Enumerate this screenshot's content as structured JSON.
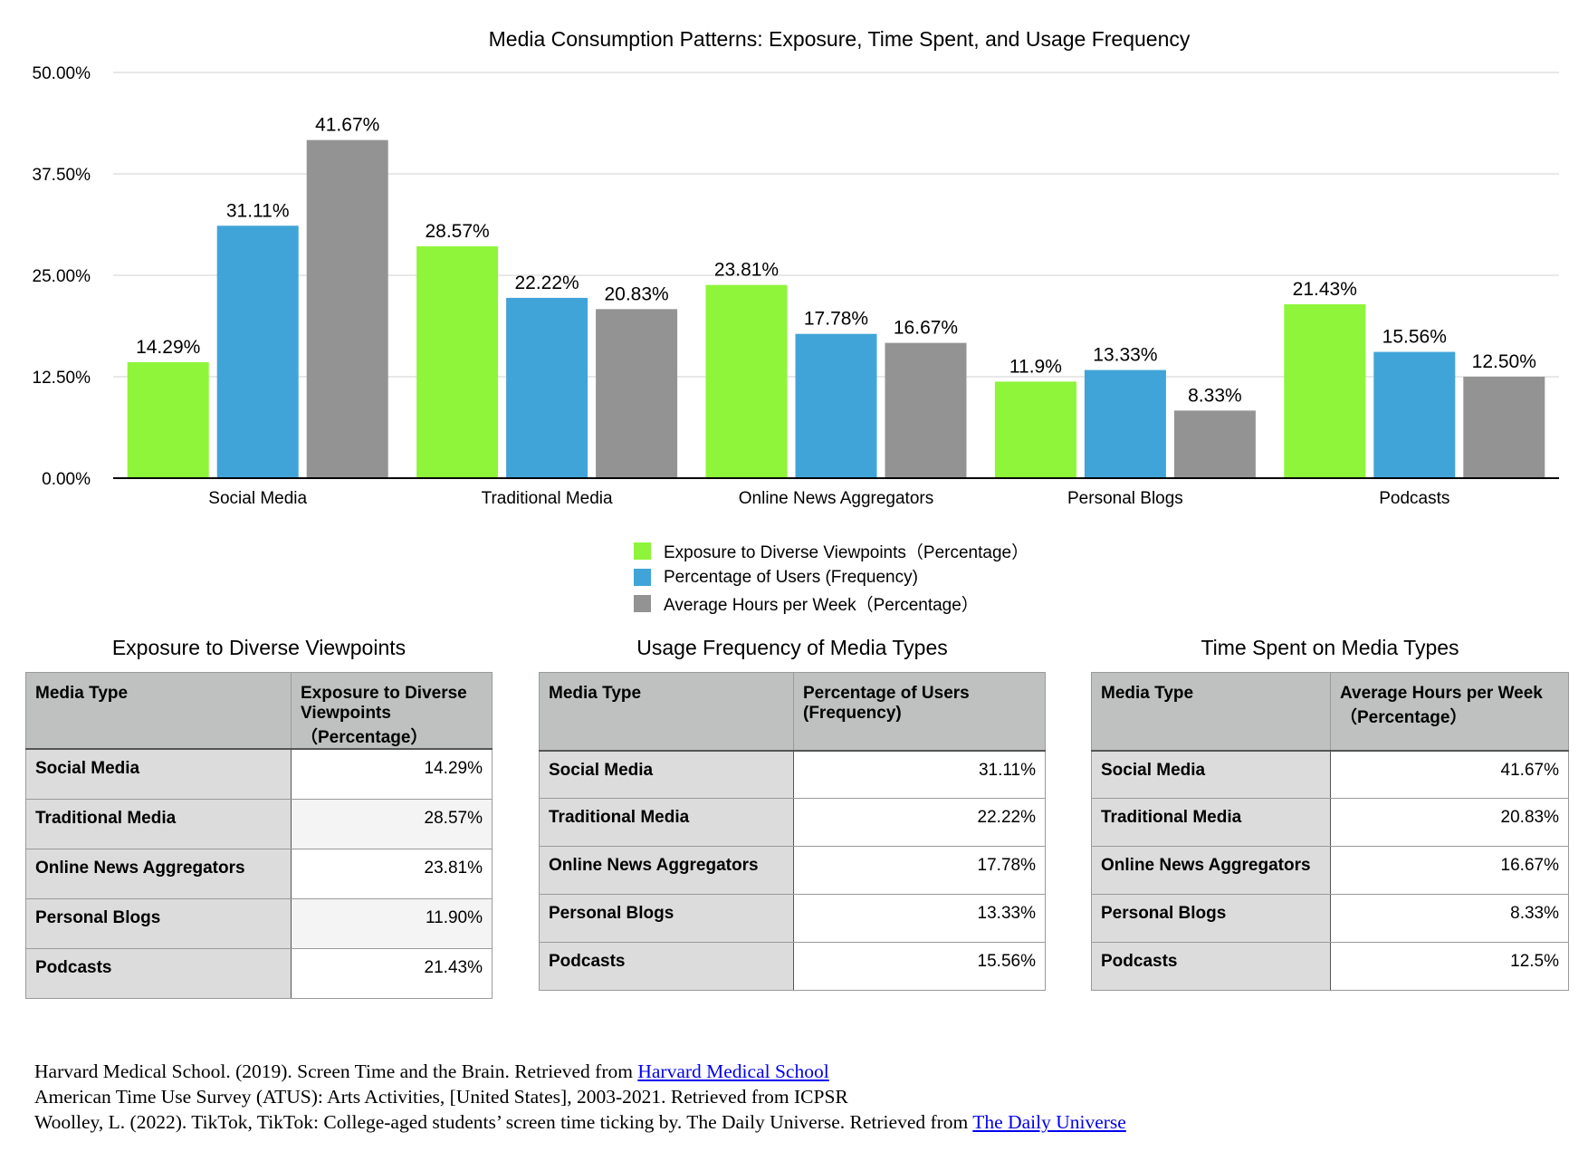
{
  "chart_data": {
    "type": "bar",
    "title": "Media Consumption Patterns: Exposure, Time Spent, and Usage Frequency",
    "categories": [
      "Social Media",
      "Traditional Media",
      "Online News Aggregators",
      "Personal Blogs",
      "Podcasts"
    ],
    "ylim": [
      0,
      50
    ],
    "yticks": [
      "0.00%",
      "12.50%",
      "25.00%",
      "37.50%",
      "50.00%"
    ],
    "ytick_values": [
      0,
      12.5,
      25,
      37.5,
      50
    ],
    "grid": true,
    "legend_position": "bottom-center",
    "series": [
      {
        "name": "Exposure to Diverse Viewpoints（Percentage）",
        "color": "#8ef53a",
        "values": [
          14.29,
          28.57,
          23.81,
          11.9,
          21.43
        ],
        "labels": [
          "14.29%",
          "28.57%",
          "23.81%",
          "11.9%",
          "21.43%"
        ]
      },
      {
        "name": "Percentage of Users (Frequency)",
        "color": "#41a4d8",
        "values": [
          31.11,
          22.22,
          17.78,
          13.33,
          15.56
        ],
        "labels": [
          "31.11%",
          "22.22%",
          "17.78%",
          "13.33%",
          "15.56%"
        ]
      },
      {
        "name": "Average Hours per Week（Percentage）",
        "color": "#939393",
        "values": [
          41.67,
          20.83,
          16.67,
          8.33,
          12.5
        ],
        "labels": [
          "41.67%",
          "20.83%",
          "16.67%",
          "8.33%",
          "12.50%"
        ]
      }
    ]
  },
  "tables": [
    {
      "title": "Exposure to Diverse Viewpoints",
      "headers": [
        "Media Type",
        "Exposure to Diverse Viewpoints（Percentage）"
      ],
      "rows": [
        [
          "Social Media",
          "14.29%"
        ],
        [
          "Traditional Media",
          "28.57%"
        ],
        [
          "Online News Aggregators",
          "23.81%"
        ],
        [
          "Personal Blogs",
          "11.90%"
        ],
        [
          "Podcasts",
          "21.43%"
        ]
      ]
    },
    {
      "title": "Usage Frequency of Media Types",
      "headers": [
        "Media Type",
        "Percentage of Users (Frequency)"
      ],
      "rows": [
        [
          "Social Media",
          "31.11%"
        ],
        [
          "Traditional Media",
          "22.22%"
        ],
        [
          "Online News Aggregators",
          "17.78%"
        ],
        [
          "Personal Blogs",
          "13.33%"
        ],
        [
          "Podcasts",
          "15.56%"
        ]
      ]
    },
    {
      "title": "Time Spent on Media Types",
      "headers": [
        "Media Type",
        "Average Hours per Week（Percentage）"
      ],
      "rows": [
        [
          "Social Media",
          "41.67%"
        ],
        [
          "Traditional Media",
          "20.83%"
        ],
        [
          "Online News Aggregators",
          "16.67%"
        ],
        [
          "Personal Blogs",
          "8.33%"
        ],
        [
          "Podcasts",
          "12.5%"
        ]
      ]
    }
  ],
  "references": [
    {
      "text": "Harvard Medical School. (2019). Screen Time and the Brain. Retrieved from ",
      "link": "Harvard Medical School"
    },
    {
      "text": "American Time Use Survey (ATUS): Arts Activities, [United States], 2003-2021. Retrieved from ICPSR",
      "link": ""
    },
    {
      "text": "Woolley, L. (2022). TikTok, TikTok: College-aged students’ screen time ticking by. The Daily Universe. Retrieved from ",
      "link": "The Daily Universe"
    }
  ]
}
